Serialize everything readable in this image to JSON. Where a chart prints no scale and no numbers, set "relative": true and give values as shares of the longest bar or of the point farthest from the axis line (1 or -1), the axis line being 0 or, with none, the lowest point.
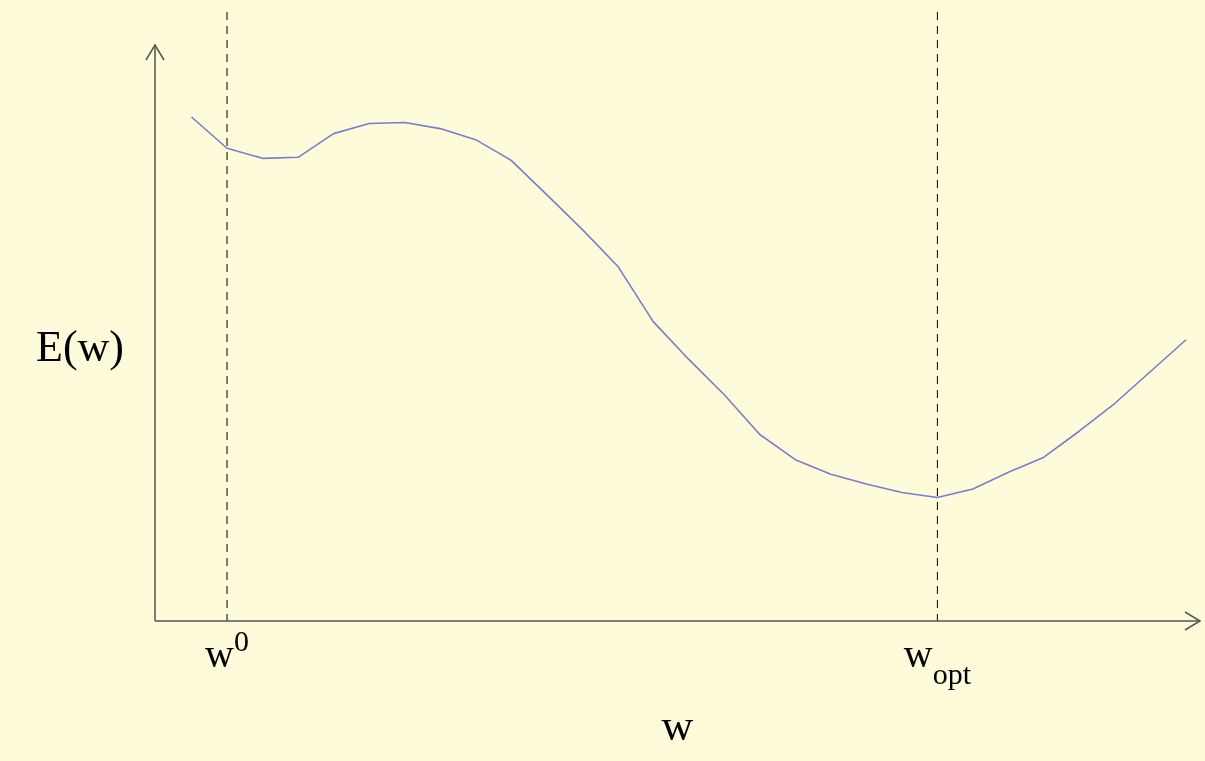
{
  "chart_data": {
    "type": "line",
    "xlabel": "w",
    "ylabel": "E(w)",
    "relative": true,
    "categories": [
      null,
      null,
      "w$^{0}$",
      null,
      null,
      null,
      null,
      null,
      null,
      null,
      null,
      null,
      null,
      null,
      null,
      null,
      null,
      null,
      null,
      null,
      null,
      null,
      "w$_{opt}$",
      null,
      null,
      null,
      null,
      null,
      null,
      null
    ],
    "series": [
      {
        "color": "#7b7bd0",
        "values": [
          null,
          1,
          0.938,
          0.918,
          0.92,
          0.967,
          0.987,
          0.989,
          0.977,
          0.955,
          0.914,
          0.846,
          0.777,
          0.704,
          0.594,
          0.519,
          0.449,
          0.37,
          0.32,
          0.291,
          0.272,
          0.255,
          0.245,
          0.262,
          0.295,
          0.325,
          0.377,
          0.432,
          0.495,
          0.558
        ]
      }
    ],
    "ref_lines": [
      {
        "axis": "x",
        "value": "w$^{0}$",
        "color": "#000000",
        "line_style": "dashed"
      },
      {
        "axis": "x",
        "value": "w$_{opt}$",
        "color": "#000000",
        "line_style": "dashed"
      }
    ]
  }
}
